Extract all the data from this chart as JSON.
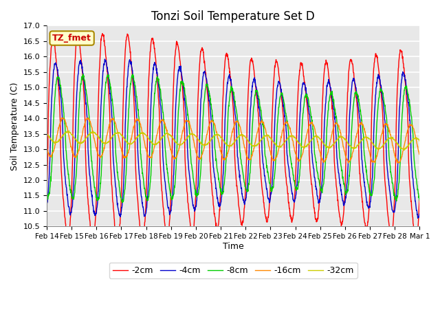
{
  "title": "Tonzi Soil Temperature Set D",
  "xlabel": "Time",
  "ylabel": "Soil Temperature (C)",
  "ylim": [
    10.5,
    17.0
  ],
  "yticks": [
    10.5,
    11.0,
    11.5,
    12.0,
    12.5,
    13.0,
    13.5,
    14.0,
    14.5,
    15.0,
    15.5,
    16.0,
    16.5,
    17.0
  ],
  "xtick_labels": [
    "Feb 14",
    "Feb 15",
    "Feb 16",
    "Feb 17",
    "Feb 18",
    "Feb 19",
    "Feb 20",
    "Feb 21",
    "Feb 22",
    "Feb 23",
    "Feb 24",
    "Feb 25",
    "Feb 26",
    "Feb 27",
    "Feb 28",
    "Mar 1"
  ],
  "legend_label": "TZ_fmet",
  "series_labels": [
    "-2cm",
    "-4cm",
    "-8cm",
    "-16cm",
    "-32cm"
  ],
  "series_colors": [
    "#ff0000",
    "#0000cc",
    "#00cc00",
    "#ff8800",
    "#cccc00"
  ],
  "background_color": "#e8e8e8",
  "n_points": 1440
}
